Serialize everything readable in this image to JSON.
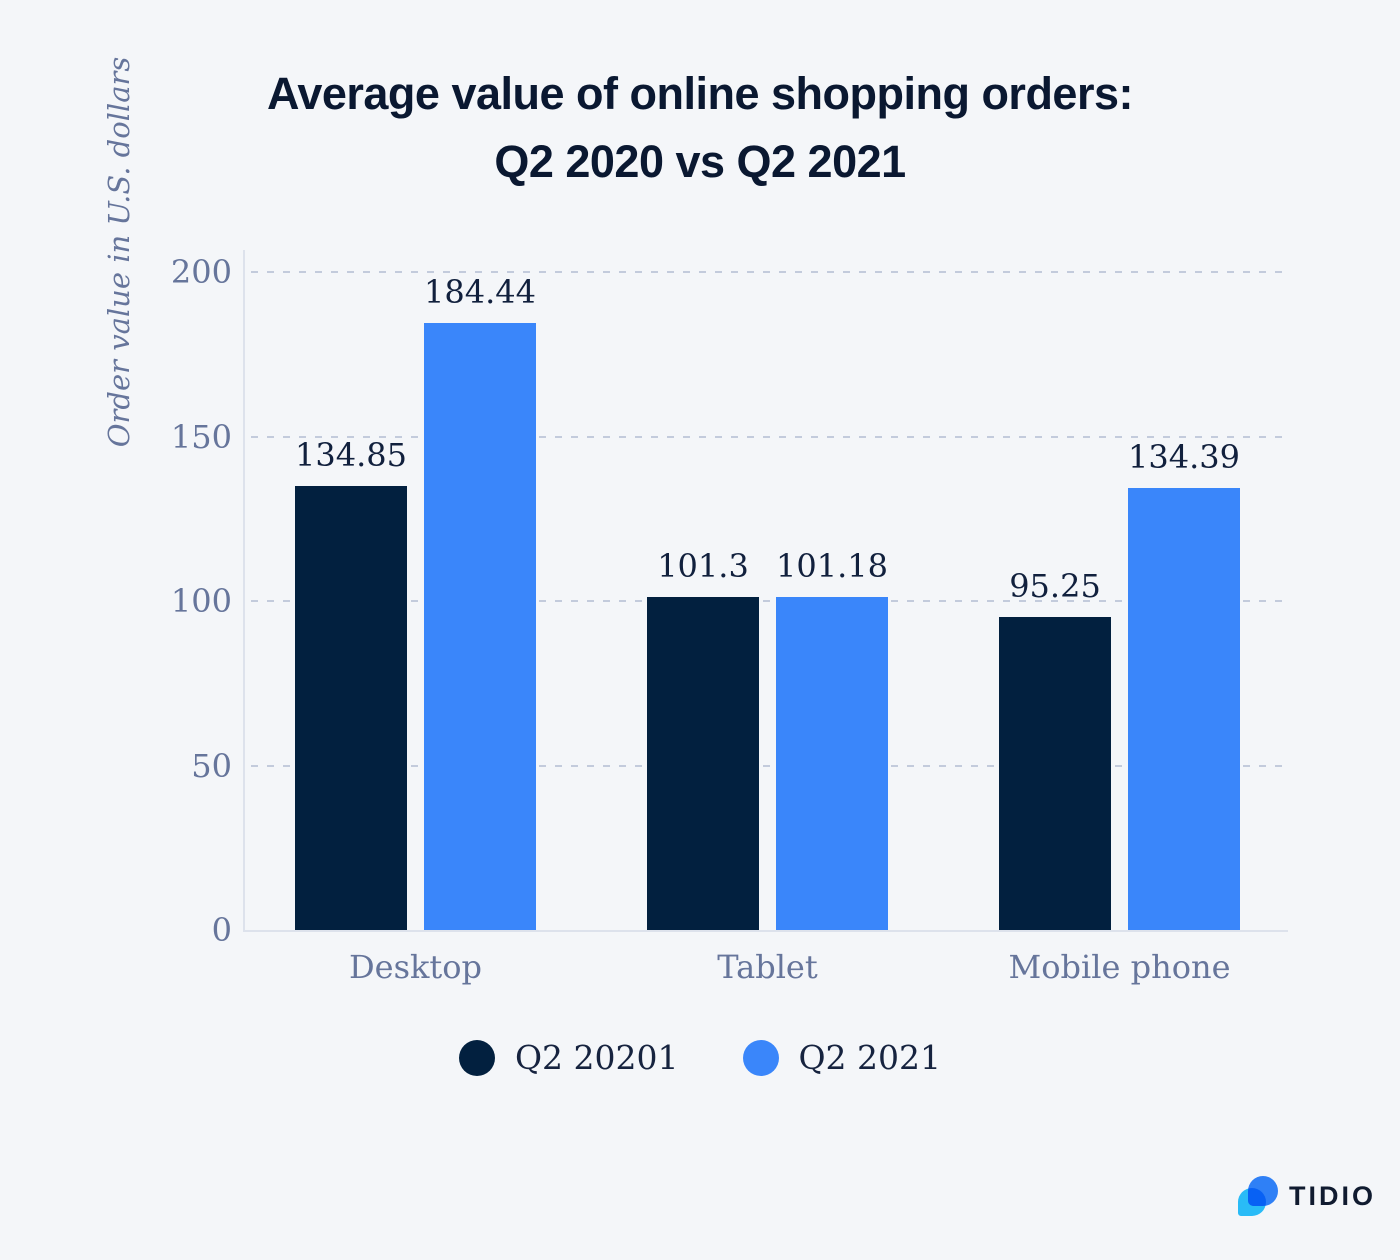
{
  "title": {
    "line1": "Average value of online shopping orders:",
    "line2": "Q2 2020 vs Q2 2021"
  },
  "chart_data": {
    "type": "bar",
    "title": "Average value of online shopping orders: Q2 2020 vs Q2 2021",
    "categories": [
      "Desktop",
      "Tablet",
      "Mobile phone"
    ],
    "series": [
      {
        "name": "Q2 20201",
        "color": "#02203f",
        "values": [
          134.85,
          101.3,
          95.25
        ],
        "display_values": [
          "134.85",
          "101.3",
          "95.25"
        ]
      },
      {
        "name": "Q2 2021",
        "color": "#3a86fa",
        "values": [
          184.44,
          101.18,
          134.39
        ],
        "display_values": [
          "184.44",
          "101.18",
          "134.39"
        ]
      }
    ],
    "xlabel": "",
    "ylabel": "Order value in U.S. dollars",
    "yticks": [
      0,
      50,
      100,
      150,
      200
    ],
    "ylim": [
      0,
      206
    ],
    "grid": "horizontal-dashed",
    "legend_position": "bottom"
  },
  "colors": {
    "background": "#f4f6f9",
    "bar_dark_navy": "#02203f",
    "bar_blue": "#3a86fa",
    "title_text": "#0a1831",
    "axis_text": "#66759b",
    "value_label_text": "#11203d",
    "gridline": "#c3cbdc",
    "axis_line": "#dde2ec",
    "logo_cyan": "#2bc2fd",
    "logo_blue": "#2f80f6"
  },
  "branding": {
    "wordmark": "TIDIO"
  }
}
